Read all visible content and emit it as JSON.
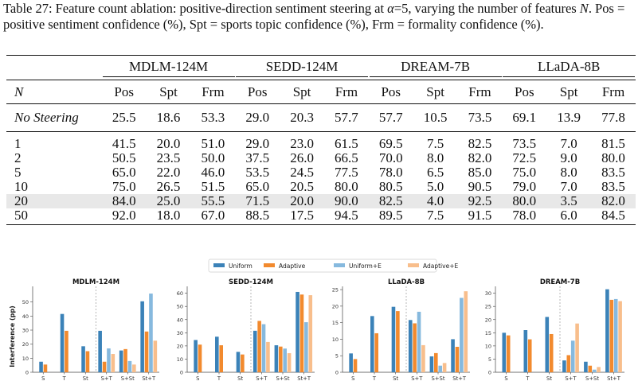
{
  "caption": {
    "parts": [
      "Table 27: Feature count ablation: positive-direction sentiment steering at ",
      "α",
      "=5, varying the number of features ",
      "N",
      ". Pos = positive sentiment confidence (%), Spt = sports topic confidence (%), Frm = formality confidence (%)."
    ]
  },
  "table": {
    "row_header": "N",
    "groups": [
      "MDLM-124M",
      "SEDD-124M",
      "DREAM-7B",
      "LLaDA-8B"
    ],
    "sub_headers": [
      "Pos",
      "Spt",
      "Frm",
      "Pos",
      "Spt",
      "Frm",
      "Pos",
      "Spt",
      "Frm",
      "Pos",
      "Spt",
      "Frm"
    ],
    "rows": [
      {
        "label": "No Steering",
        "values": [
          "25.5",
          "18.6",
          "53.3",
          "29.0",
          "20.3",
          "57.7",
          "57.7",
          "10.5",
          "73.5",
          "69.1",
          "13.9",
          "77.8"
        ]
      },
      {
        "label": "1",
        "values": [
          "41.5",
          "20.0",
          "51.0",
          "29.0",
          "23.0",
          "61.5",
          "69.5",
          "7.5",
          "82.5",
          "73.5",
          "7.0",
          "81.5"
        ]
      },
      {
        "label": "2",
        "values": [
          "50.5",
          "23.5",
          "50.0",
          "37.5",
          "26.0",
          "66.5",
          "70.0",
          "8.0",
          "82.0",
          "72.5",
          "9.0",
          "80.0"
        ]
      },
      {
        "label": "5",
        "values": [
          "65.0",
          "22.0",
          "46.0",
          "53.5",
          "24.5",
          "77.5",
          "78.0",
          "6.5",
          "85.0",
          "75.0",
          "8.0",
          "83.5"
        ]
      },
      {
        "label": "10",
        "values": [
          "75.0",
          "26.5",
          "51.5",
          "65.0",
          "20.5",
          "80.0",
          "80.5",
          "5.0",
          "90.5",
          "79.0",
          "7.0",
          "83.5"
        ]
      },
      {
        "label": "20",
        "values": [
          "84.0",
          "25.0",
          "55.5",
          "71.5",
          "20.0",
          "90.0",
          "82.5",
          "4.0",
          "92.5",
          "80.0",
          "3.5",
          "82.0"
        ],
        "highlight": true
      },
      {
        "label": "50",
        "values": [
          "92.0",
          "18.0",
          "67.0",
          "88.5",
          "17.5",
          "94.5",
          "89.5",
          "7.5",
          "91.5",
          "78.0",
          "6.0",
          "84.5"
        ]
      }
    ]
  },
  "chart_data": {
    "type": "bar",
    "legend": [
      "Uniform",
      "Adaptive",
      "Uniform+E",
      "Adaptive+E"
    ],
    "legend_placement": "top-center",
    "colors": [
      "#3b82b8",
      "#f28a2e",
      "#86b9de",
      "#f8be8c"
    ],
    "ylabel": "Interference (pp)",
    "categories": [
      "S",
      "T",
      "St",
      "S+T",
      "S+St",
      "St+T"
    ],
    "panels": [
      {
        "title": "MDLM-124M",
        "ylim": [
          0,
          60
        ],
        "yticks": [
          0,
          10,
          20,
          30,
          40,
          50
        ],
        "series": [
          [
            7.5,
            41.5,
            18.5,
            29.5,
            15.5,
            50.5
          ],
          [
            5.5,
            29.5,
            15.0,
            7.5,
            16.5,
            29.0
          ],
          [
            null,
            null,
            null,
            17.0,
            8.0,
            56.0
          ],
          [
            null,
            null,
            null,
            13.0,
            5.5,
            22.5
          ]
        ]
      },
      {
        "title": "SEDD-124M",
        "ylim": [
          0,
          64
        ],
        "yticks": [
          0,
          10,
          20,
          30,
          40,
          50,
          60
        ],
        "series": [
          [
            24.5,
            27.0,
            15.5,
            31.5,
            20.5,
            61.0
          ],
          [
            21.0,
            20.5,
            13.5,
            39.0,
            19.5,
            59.0
          ],
          [
            null,
            null,
            null,
            36.5,
            18.0,
            38.0
          ],
          [
            null,
            null,
            null,
            23.0,
            14.5,
            58.5
          ]
        ]
      },
      {
        "title": "LLaDA-8B",
        "ylim": [
          0,
          25.5
        ],
        "yticks": [
          0,
          5,
          10,
          15,
          20,
          25
        ],
        "series": [
          [
            5.7,
            17.0,
            19.8,
            15.8,
            4.8,
            10.0
          ],
          [
            4.0,
            11.8,
            18.5,
            14.8,
            5.8,
            7.7
          ],
          [
            null,
            null,
            null,
            18.3,
            2.0,
            22.5
          ],
          [
            null,
            null,
            null,
            8.2,
            2.8,
            24.5
          ]
        ]
      },
      {
        "title": "DREAM-7B",
        "ylim": [
          0,
          32
        ],
        "yticks": [
          0,
          5,
          10,
          15,
          20,
          25,
          30
        ],
        "series": [
          [
            15.0,
            16.0,
            21.0,
            4.5,
            4.0,
            31.5
          ],
          [
            14.0,
            12.5,
            14.5,
            6.5,
            2.5,
            27.5
          ],
          [
            null,
            null,
            null,
            12.0,
            1.0,
            27.8
          ],
          [
            null,
            null,
            null,
            18.5,
            2.0,
            27.0
          ]
        ]
      }
    ]
  }
}
